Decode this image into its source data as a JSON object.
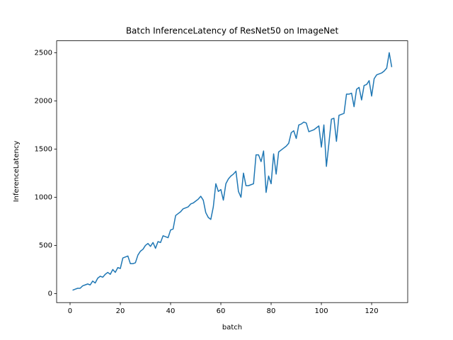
{
  "chart_data": {
    "type": "line",
    "title": "Batch InferenceLatency of ResNet50 on ImageNet",
    "x_label": "batch",
    "y_label": "InferenceLatency",
    "color": "#1f77b4",
    "x": [
      1,
      2,
      3,
      4,
      5,
      6,
      7,
      8,
      9,
      10,
      11,
      12,
      13,
      14,
      15,
      16,
      17,
      18,
      19,
      20,
      21,
      22,
      23,
      24,
      25,
      26,
      27,
      28,
      29,
      30,
      31,
      32,
      33,
      34,
      35,
      36,
      37,
      38,
      39,
      40,
      41,
      42,
      43,
      44,
      45,
      46,
      47,
      48,
      49,
      50,
      51,
      52,
      53,
      54,
      55,
      56,
      57,
      58,
      59,
      60,
      61,
      62,
      63,
      64,
      65,
      66,
      67,
      68,
      69,
      70,
      71,
      72,
      73,
      74,
      75,
      76,
      77,
      78,
      79,
      80,
      81,
      82,
      83,
      84,
      85,
      86,
      87,
      88,
      89,
      90,
      91,
      92,
      93,
      94,
      95,
      96,
      97,
      98,
      99,
      100,
      101,
      102,
      103,
      104,
      105,
      106,
      107,
      108,
      109,
      110,
      111,
      112,
      113,
      114,
      115,
      116,
      117,
      118,
      119,
      120,
      121,
      122,
      123,
      124,
      125,
      126,
      127,
      128
    ],
    "values": [
      35,
      45,
      55,
      55,
      80,
      90,
      100,
      90,
      130,
      110,
      160,
      180,
      170,
      200,
      220,
      200,
      250,
      220,
      270,
      260,
      370,
      380,
      390,
      310,
      310,
      320,
      400,
      440,
      460,
      500,
      520,
      490,
      530,
      470,
      540,
      530,
      600,
      590,
      580,
      660,
      670,
      810,
      830,
      850,
      880,
      890,
      900,
      930,
      940,
      960,
      980,
      1010,
      970,
      840,
      790,
      770,
      900,
      1140,
      1060,
      1080,
      970,
      1140,
      1190,
      1220,
      1240,
      1270,
      1060,
      1000,
      1250,
      1120,
      1120,
      1130,
      1140,
      1440,
      1440,
      1370,
      1480,
      1050,
      1220,
      1140,
      1450,
      1240,
      1470,
      1490,
      1510,
      1530,
      1560,
      1670,
      1690,
      1610,
      1750,
      1760,
      1780,
      1770,
      1680,
      1690,
      1700,
      1720,
      1740,
      1520,
      1750,
      1320,
      1560,
      1810,
      1820,
      1580,
      1850,
      1860,
      1870,
      2070,
      2070,
      2080,
      1940,
      2120,
      2140,
      2010,
      2160,
      2170,
      2210,
      2050,
      2230,
      2270,
      2280,
      2290,
      2310,
      2340,
      2500,
      2350
    ],
    "xlim": [
      -5.35,
      134.35
    ],
    "ylim": [
      -93.5,
      2623.5
    ],
    "xticks": [
      0,
      20,
      40,
      60,
      80,
      100,
      120
    ],
    "yticks": [
      0,
      500,
      1000,
      1500,
      2000,
      2500
    ]
  }
}
